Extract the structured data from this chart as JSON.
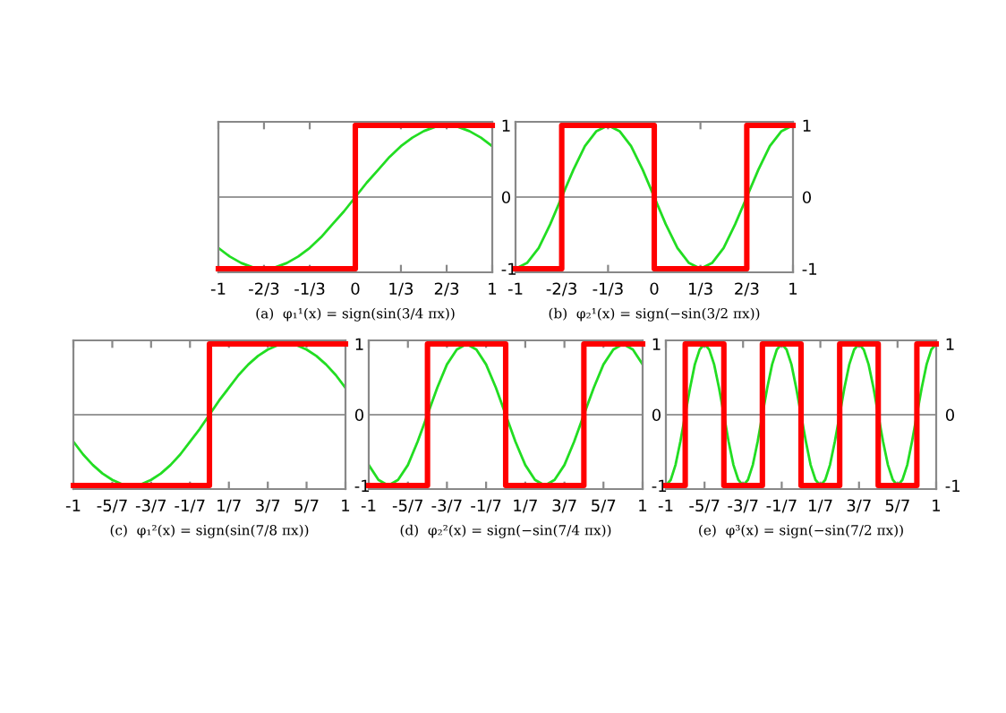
{
  "chart_data": [
    {
      "type": "line",
      "xlabel": "(a)  φ₁¹(x) = sign(sin(3/4 πx))",
      "xlim": [
        -1,
        1
      ],
      "ylim": [
        -1.05,
        1.05
      ],
      "xticks": [
        {
          "value": -1,
          "label": "-1"
        },
        {
          "value": -0.667,
          "label": "-2/3"
        },
        {
          "value": -0.333,
          "label": "-1/3"
        },
        {
          "value": 0,
          "label": "0"
        },
        {
          "value": 0.333,
          "label": "1/3"
        },
        {
          "value": 0.667,
          "label": "2/3"
        },
        {
          "value": 1,
          "label": "1"
        }
      ],
      "yticks": [
        -1,
        0,
        1
      ],
      "ref_lines": [
        {
          "axis": "y",
          "value": 0,
          "color": "#999999"
        }
      ],
      "series": [
        {
          "type": "line",
          "color": "#22dd22",
          "x": [
            -1,
            -0.917,
            -0.833,
            -0.75,
            -0.667,
            -0.583,
            -0.5,
            -0.417,
            -0.333,
            -0.25,
            -0.167,
            -0.083,
            0,
            0.083,
            0.167,
            0.25,
            0.333,
            0.417,
            0.5,
            0.583,
            0.667,
            0.75,
            0.833,
            0.917,
            1
          ],
          "values": [
            -0.71,
            -0.83,
            -0.92,
            -0.98,
            -1,
            -0.98,
            -0.92,
            -0.83,
            -0.71,
            -0.56,
            -0.38,
            -0.2,
            0,
            0.2,
            0.38,
            0.56,
            0.71,
            0.83,
            0.92,
            0.98,
            1,
            0.98,
            0.92,
            0.83,
            0.71
          ]
        },
        {
          "type": "step",
          "color": "#ff0000",
          "x": [
            -1,
            0,
            1
          ],
          "values": [
            -1,
            1,
            1
          ]
        }
      ]
    },
    {
      "type": "line",
      "xlabel": "(b)  φ₂¹(x) = sign(−sin(3/2 πx))",
      "xlim": [
        -1,
        1
      ],
      "ylim": [
        -1.05,
        1.05
      ],
      "xticks": [
        {
          "value": -1,
          "label": "-1"
        },
        {
          "value": -0.667,
          "label": "-2/3"
        },
        {
          "value": -0.333,
          "label": "-1/3"
        },
        {
          "value": 0,
          "label": "0"
        },
        {
          "value": 0.333,
          "label": "1/3"
        },
        {
          "value": 0.667,
          "label": "2/3"
        },
        {
          "value": 1,
          "label": "1"
        }
      ],
      "yticks": [
        -1,
        0,
        1
      ],
      "ref_lines": [
        {
          "axis": "y",
          "value": 0,
          "color": "#999999"
        }
      ],
      "series": [
        {
          "type": "line",
          "color": "#22dd22",
          "x": [
            -1,
            -0.917,
            -0.833,
            -0.75,
            -0.667,
            -0.583,
            -0.5,
            -0.417,
            -0.333,
            -0.25,
            -0.167,
            -0.083,
            0,
            0.083,
            0.167,
            0.25,
            0.333,
            0.417,
            0.5,
            0.583,
            0.667,
            0.75,
            0.833,
            0.917,
            1
          ],
          "values": [
            -1,
            -0.92,
            -0.71,
            -0.38,
            0,
            0.38,
            0.71,
            0.92,
            1,
            0.92,
            0.71,
            0.38,
            0,
            -0.38,
            -0.71,
            -0.92,
            -1,
            -0.92,
            -0.71,
            -0.38,
            0,
            0.38,
            0.71,
            0.92,
            1
          ]
        },
        {
          "type": "step",
          "color": "#ff0000",
          "x": [
            -1,
            -0.667,
            0,
            0.667,
            1
          ],
          "values": [
            -1,
            1,
            -1,
            1,
            1
          ]
        }
      ]
    },
    {
      "type": "line",
      "xlabel": "(c)  φ₁²(x) = sign(sin(7/8 πx))",
      "xlim": [
        -1,
        1
      ],
      "ylim": [
        -1.05,
        1.05
      ],
      "xticks": [
        {
          "value": -1,
          "label": "-1"
        },
        {
          "value": -0.714,
          "label": "-5/7"
        },
        {
          "value": -0.429,
          "label": "-3/7"
        },
        {
          "value": -0.143,
          "label": "-1/7"
        },
        {
          "value": 0.143,
          "label": "1/7"
        },
        {
          "value": 0.429,
          "label": "3/7"
        },
        {
          "value": 0.714,
          "label": "5/7"
        },
        {
          "value": 1,
          "label": "1"
        }
      ],
      "yticks": [
        -1,
        0,
        1
      ],
      "ref_lines": [
        {
          "axis": "y",
          "value": 0,
          "color": "#999999"
        }
      ],
      "series": [
        {
          "type": "line",
          "color": "#22dd22",
          "x": [
            -1,
            -0.929,
            -0.857,
            -0.786,
            -0.714,
            -0.643,
            -0.571,
            -0.5,
            -0.429,
            -0.357,
            -0.286,
            -0.214,
            -0.143,
            -0.071,
            0,
            0.071,
            0.143,
            0.214,
            0.286,
            0.357,
            0.429,
            0.5,
            0.571,
            0.643,
            0.714,
            0.786,
            0.857,
            0.929,
            1
          ],
          "values": [
            -0.38,
            -0.56,
            -0.71,
            -0.83,
            -0.92,
            -0.98,
            -1,
            -0.98,
            -0.92,
            -0.83,
            -0.71,
            -0.56,
            -0.38,
            -0.2,
            0,
            0.2,
            0.38,
            0.56,
            0.71,
            0.83,
            0.92,
            0.98,
            1,
            0.98,
            0.92,
            0.83,
            0.71,
            0.56,
            0.38
          ]
        },
        {
          "type": "step",
          "color": "#ff0000",
          "x": [
            -1,
            0,
            1
          ],
          "values": [
            -1,
            1,
            1
          ]
        }
      ]
    },
    {
      "type": "line",
      "xlabel": "(d)  φ₂²(x) = sign(−sin(7/4 πx))",
      "xlim": [
        -1,
        1
      ],
      "ylim": [
        -1.05,
        1.05
      ],
      "xticks": [
        {
          "value": -1,
          "label": "-1"
        },
        {
          "value": -0.714,
          "label": "-5/7"
        },
        {
          "value": -0.429,
          "label": "-3/7"
        },
        {
          "value": -0.143,
          "label": "-1/7"
        },
        {
          "value": 0.143,
          "label": "1/7"
        },
        {
          "value": 0.429,
          "label": "3/7"
        },
        {
          "value": 0.714,
          "label": "5/7"
        },
        {
          "value": 1,
          "label": "1"
        }
      ],
      "yticks": [
        -1,
        0,
        1
      ],
      "ref_lines": [
        {
          "axis": "y",
          "value": 0,
          "color": "#999999"
        }
      ],
      "series": [
        {
          "type": "line",
          "color": "#22dd22",
          "x": [
            -1,
            -0.929,
            -0.857,
            -0.786,
            -0.714,
            -0.643,
            -0.571,
            -0.5,
            -0.429,
            -0.357,
            -0.286,
            -0.214,
            -0.143,
            -0.071,
            0,
            0.071,
            0.143,
            0.214,
            0.286,
            0.357,
            0.429,
            0.5,
            0.571,
            0.643,
            0.714,
            0.786,
            0.857,
            0.929,
            1
          ],
          "values": [
            -0.71,
            -0.92,
            -1,
            -0.92,
            -0.71,
            -0.38,
            0,
            0.38,
            0.71,
            0.92,
            1,
            0.92,
            0.71,
            0.38,
            0,
            -0.38,
            -0.71,
            -0.92,
            -1,
            -0.92,
            -0.71,
            -0.38,
            0,
            0.38,
            0.71,
            0.92,
            1,
            0.92,
            0.71
          ]
        },
        {
          "type": "step",
          "color": "#ff0000",
          "x": [
            -1,
            -0.571,
            0,
            0.571,
            1
          ],
          "values": [
            -1,
            1,
            -1,
            1,
            1
          ]
        }
      ]
    },
    {
      "type": "line",
      "xlabel": "(e)  φ³(x) = sign(−sin(7/2 πx))",
      "xlim": [
        -1,
        1
      ],
      "ylim": [
        -1.05,
        1.05
      ],
      "xticks": [
        {
          "value": -1,
          "label": "-1"
        },
        {
          "value": -0.714,
          "label": "-5/7"
        },
        {
          "value": -0.429,
          "label": "-3/7"
        },
        {
          "value": -0.143,
          "label": "-1/7"
        },
        {
          "value": 0.143,
          "label": "1/7"
        },
        {
          "value": 0.429,
          "label": "3/7"
        },
        {
          "value": 0.714,
          "label": "5/7"
        },
        {
          "value": 1,
          "label": "1"
        }
      ],
      "yticks": [
        -1,
        0,
        1
      ],
      "ref_lines": [
        {
          "axis": "y",
          "value": 0,
          "color": "#999999"
        }
      ],
      "series": [
        {
          "type": "line",
          "color": "#22dd22",
          "x": [
            -1,
            -0.964,
            -0.929,
            -0.893,
            -0.857,
            -0.821,
            -0.786,
            -0.75,
            -0.714,
            -0.679,
            -0.643,
            -0.607,
            -0.571,
            -0.536,
            -0.5,
            -0.464,
            -0.429,
            -0.393,
            -0.357,
            -0.321,
            -0.286,
            -0.25,
            -0.214,
            -0.179,
            -0.143,
            -0.107,
            -0.071,
            -0.036,
            0,
            0.036,
            0.071,
            0.107,
            0.143,
            0.179,
            0.214,
            0.25,
            0.286,
            0.321,
            0.357,
            0.393,
            0.429,
            0.464,
            0.5,
            0.536,
            0.571,
            0.607,
            0.643,
            0.679,
            0.714,
            0.75,
            0.786,
            0.821,
            0.857,
            0.893,
            0.929,
            0.964,
            1
          ],
          "values": [
            -1,
            -0.92,
            -0.71,
            -0.38,
            0,
            0.38,
            0.71,
            0.92,
            1,
            0.92,
            0.71,
            0.38,
            0,
            -0.38,
            -0.71,
            -0.92,
            -1,
            -0.92,
            -0.71,
            -0.38,
            0,
            0.38,
            0.71,
            0.92,
            1,
            0.92,
            0.71,
            0.38,
            0,
            -0.38,
            -0.71,
            -0.92,
            -1,
            -0.92,
            -0.71,
            -0.38,
            0,
            0.38,
            0.71,
            0.92,
            1,
            0.92,
            0.71,
            0.38,
            0,
            -0.38,
            -0.71,
            -0.92,
            -1,
            -0.92,
            -0.71,
            -0.38,
            0,
            0.38,
            0.71,
            0.92,
            1
          ]
        },
        {
          "type": "step",
          "color": "#ff0000",
          "x": [
            -1,
            -0.857,
            -0.571,
            -0.286,
            0,
            0.286,
            0.571,
            0.857,
            1
          ],
          "values": [
            -1,
            1,
            -1,
            1,
            -1,
            1,
            -1,
            1,
            1
          ]
        }
      ]
    }
  ]
}
